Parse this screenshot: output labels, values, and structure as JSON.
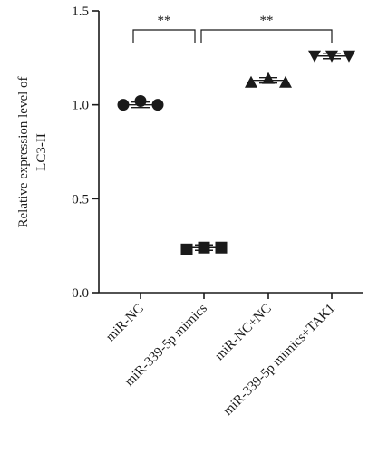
{
  "chart_data": {
    "type": "scatter",
    "ylabel_lines": [
      "Relative expression level of",
      "LC3-II"
    ],
    "xlabel": "",
    "ylim": [
      0,
      1.5
    ],
    "yticks": [
      0.0,
      0.5,
      1.0,
      1.5
    ],
    "ytick_labels": [
      "0.0",
      "0.5",
      "1.0",
      "1.5"
    ],
    "grid": false,
    "categories": [
      "miR-NC",
      "miR-339-5p mimics",
      "miR-NC+NC",
      "miR-339-5p mimics+TAK1"
    ],
    "series": [
      {
        "category": "miR-NC",
        "marker": "circle",
        "values": [
          1.0,
          1.02,
          1.0
        ],
        "mean": 1.0
      },
      {
        "category": "miR-339-5p mimics",
        "marker": "square",
        "values": [
          0.23,
          0.24,
          0.24
        ],
        "mean": 0.24
      },
      {
        "category": "miR-NC+NC",
        "marker": "triangle-up",
        "values": [
          1.12,
          1.14,
          1.12
        ],
        "mean": 1.13
      },
      {
        "category": "miR-339-5p mimics+TAK1",
        "marker": "triangle-down",
        "values": [
          1.26,
          1.26,
          1.26
        ],
        "mean": 1.26
      }
    ],
    "significance": [
      {
        "from": "miR-NC",
        "to": "miR-339-5p mimics",
        "label": "**"
      },
      {
        "from": "miR-339-5p mimics",
        "to": "miR-339-5p mimics+TAK1",
        "label": "**"
      }
    ]
  }
}
